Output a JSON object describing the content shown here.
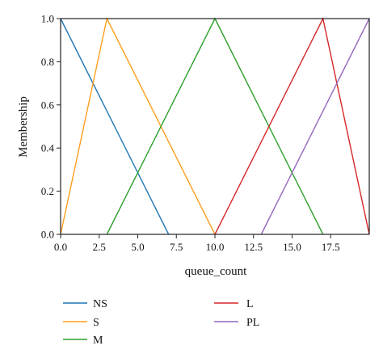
{
  "chart_data": {
    "type": "line",
    "title": "",
    "xlabel": "queue_count",
    "ylabel": "Membership",
    "xlim": [
      0,
      20
    ],
    "ylim": [
      0,
      1
    ],
    "xticks": [
      0,
      2.5,
      5,
      7.5,
      10,
      12.5,
      15,
      17.5
    ],
    "xtick_labels": [
      "0.0",
      "2.5",
      "5.0",
      "7.5",
      "10.0",
      "12.5",
      "15.0",
      "17.5"
    ],
    "yticks": [
      0,
      0.2,
      0.4,
      0.6,
      0.8,
      1.0
    ],
    "ytick_labels": [
      "0.0",
      "0.2",
      "0.4",
      "0.6",
      "0.8",
      "1.0"
    ],
    "grid": false,
    "legend_position": "bottom",
    "series": [
      {
        "name": "NS",
        "color": "#1f77b4",
        "x": [
          0,
          7
        ],
        "y": [
          1,
          0
        ]
      },
      {
        "name": "S",
        "color": "#ff9f1c",
        "x": [
          0,
          3,
          10
        ],
        "y": [
          0,
          1,
          0
        ]
      },
      {
        "name": "M",
        "color": "#2ca02c",
        "x": [
          3,
          10,
          17
        ],
        "y": [
          0,
          1,
          0
        ]
      },
      {
        "name": "L",
        "color": "#d62728",
        "x": [
          10,
          17,
          20
        ],
        "y": [
          0,
          1,
          0
        ]
      },
      {
        "name": "PL",
        "color": "#9467bd",
        "x": [
          13,
          20
        ],
        "y": [
          0,
          1
        ]
      }
    ]
  }
}
